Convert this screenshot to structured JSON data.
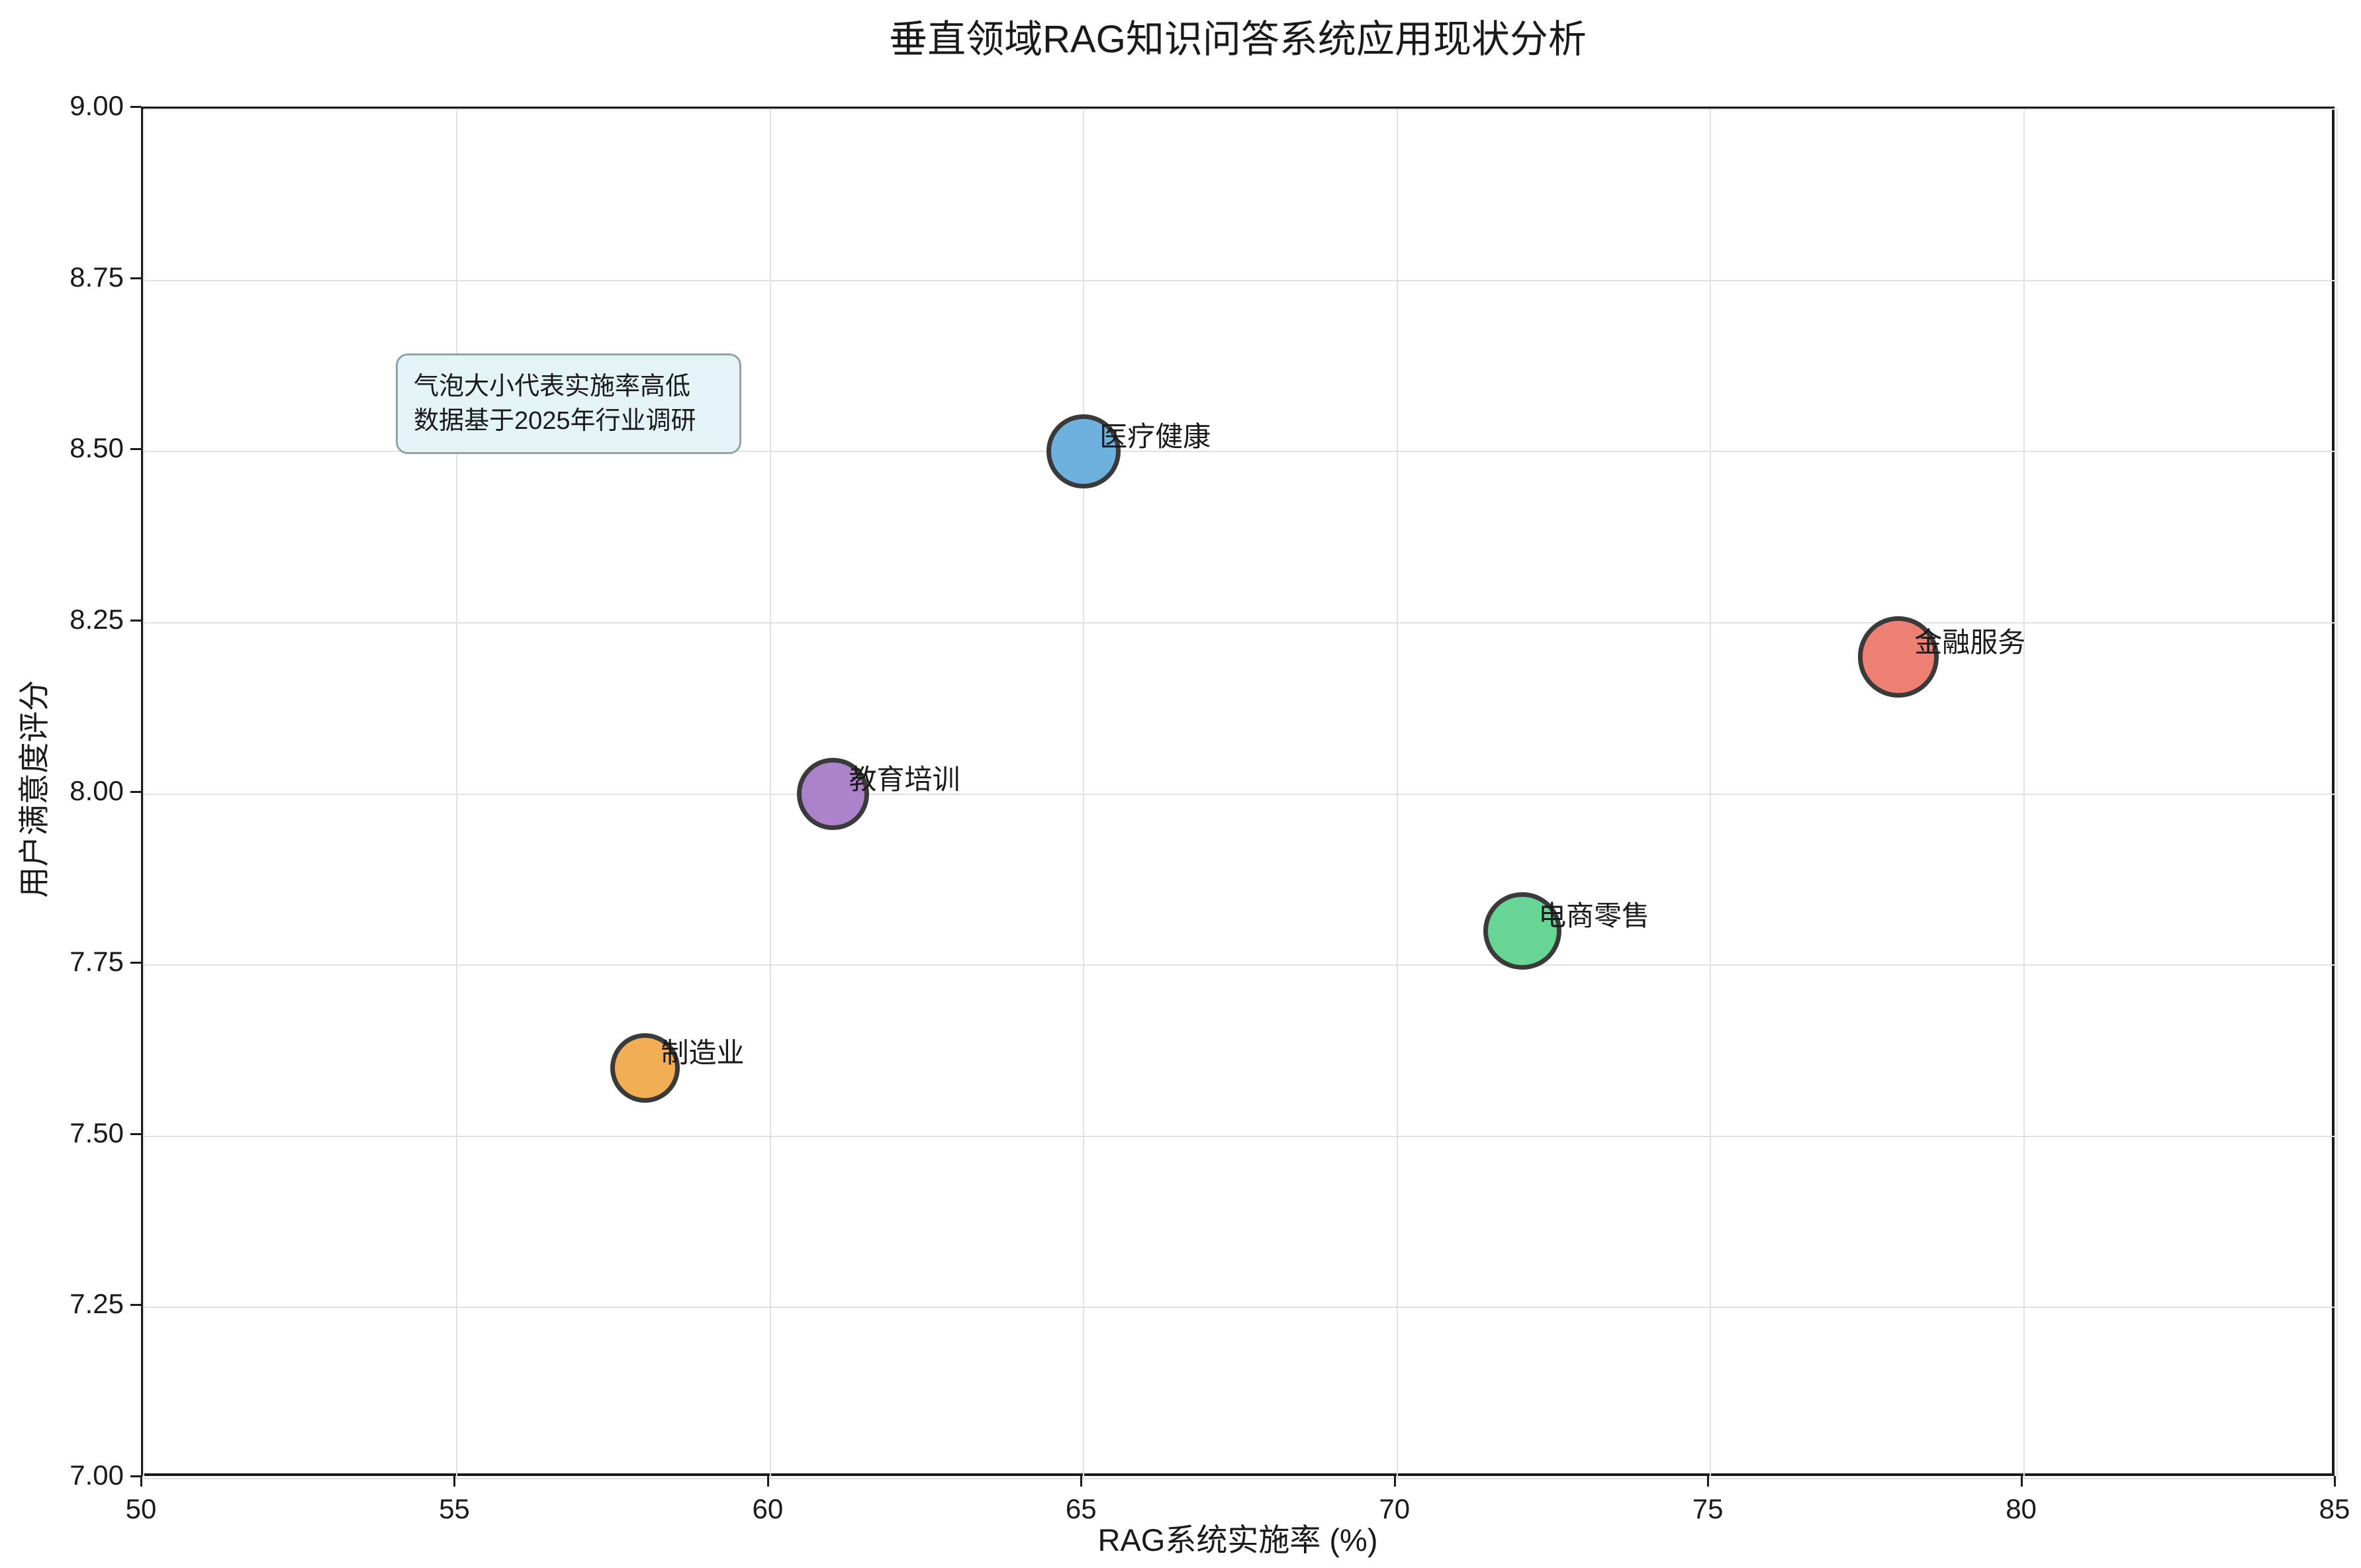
{
  "chart_data": {
    "type": "scatter",
    "title": "垂直领域RAG知识问答系统应用现状分析",
    "xlabel": "RAG系统实施率 (%)",
    "ylabel": "用户满意度评分",
    "xlim": [
      50,
      85
    ],
    "ylim": [
      7.0,
      9.0
    ],
    "xticks": [
      "50",
      "55",
      "60",
      "65",
      "70",
      "75",
      "80",
      "85"
    ],
    "yticks": [
      "7.00",
      "7.25",
      "7.50",
      "7.75",
      "8.00",
      "8.25",
      "8.50",
      "8.75",
      "9.00"
    ],
    "grid": true,
    "legend": false,
    "bubble_size_meaning": "实施率",
    "points": [
      {
        "label": "医疗健康",
        "x": 65,
        "y": 8.5,
        "size": 65,
        "color": "#6FB1DE"
      },
      {
        "label": "金融服务",
        "x": 78,
        "y": 8.2,
        "size": 78,
        "color": "#EE7F73"
      },
      {
        "label": "教育培训",
        "x": 61,
        "y": 8.0,
        "size": 61,
        "color": "#AC82CA"
      },
      {
        "label": "电商零售",
        "x": 72,
        "y": 7.8,
        "size": 72,
        "color": "#67D593"
      },
      {
        "label": "制造业",
        "x": 58,
        "y": 7.6,
        "size": 58,
        "color": "#F2AE54"
      }
    ]
  },
  "annotation": {
    "line1": "气泡大小代表实施率高低",
    "line2": "数据基于2025年行业调研"
  },
  "colors": {
    "grid": "#e1e1e1",
    "spine": "#1a1a1a",
    "text": "#1a1a1a",
    "bubble_edge": "#3a3a3a",
    "annotation_bg": "#e4f3f5",
    "annotation_border": "#90a4a8"
  }
}
